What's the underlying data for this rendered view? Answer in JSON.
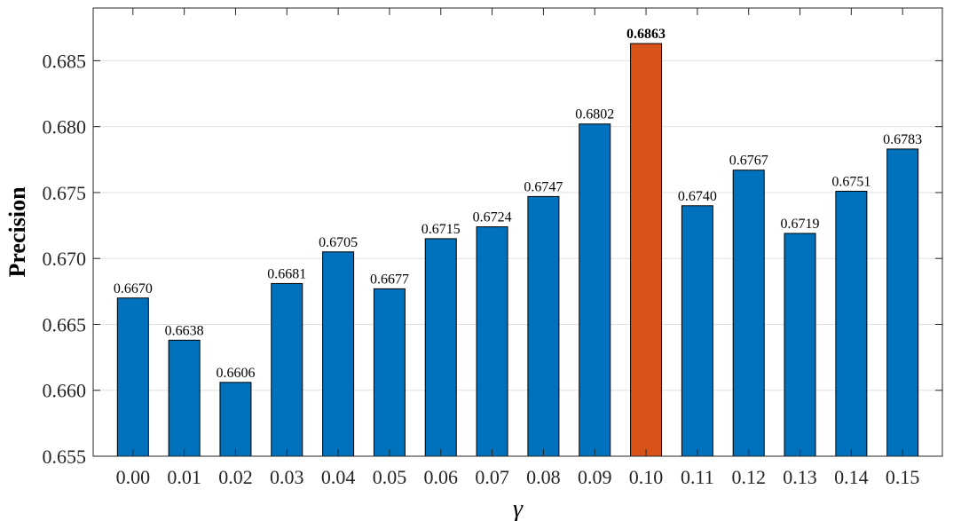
{
  "chart_data": {
    "type": "bar",
    "categories": [
      "0.00",
      "0.01",
      "0.02",
      "0.03",
      "0.04",
      "0.05",
      "0.06",
      "0.07",
      "0.08",
      "0.09",
      "0.10",
      "0.11",
      "0.12",
      "0.13",
      "0.14",
      "0.15"
    ],
    "values": [
      0.667,
      0.6638,
      0.6606,
      0.6681,
      0.6705,
      0.6677,
      0.6715,
      0.6724,
      0.6747,
      0.6802,
      0.6863,
      0.674,
      0.6767,
      0.6719,
      0.6751,
      0.6783
    ],
    "value_labels": [
      "0.6670",
      "0.6638",
      "0.6606",
      "0.6681",
      "0.6705",
      "0.6677",
      "0.6715",
      "0.6724",
      "0.6747",
      "0.6802",
      "0.6863",
      "0.6740",
      "0.6767",
      "0.6719",
      "0.6751",
      "0.6783"
    ],
    "highlight_index": 10,
    "title": "",
    "xlabel": "γ",
    "ylabel": "Precision",
    "ylim": [
      0.655,
      0.689
    ],
    "yticks": [
      "0.655",
      "0.660",
      "0.665",
      "0.670",
      "0.675",
      "0.680",
      "0.685"
    ],
    "grid": "horizontal",
    "colors": {
      "bar": "#0072BD",
      "highlight": "#D95319",
      "grid": "#e0e0e0",
      "axis": "#262626"
    }
  }
}
